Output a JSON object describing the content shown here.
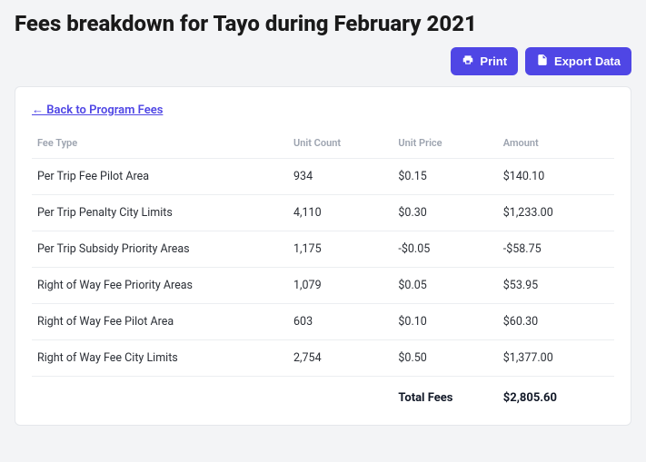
{
  "title": "Fees breakdown for Tayo during February 2021",
  "buttons": {
    "print": "Print",
    "export": "Export Data"
  },
  "backlink": "← Back to Program Fees",
  "table": {
    "headers": {
      "fee_type": "Fee Type",
      "unit_count": "Unit Count",
      "unit_price": "Unit Price",
      "amount": "Amount"
    },
    "rows": [
      {
        "fee_type": "Per Trip Fee Pilot Area",
        "unit_count": "934",
        "unit_price": "$0.15",
        "amount": "$140.10"
      },
      {
        "fee_type": "Per Trip Penalty City Limits",
        "unit_count": "4,110",
        "unit_price": "$0.30",
        "amount": "$1,233.00"
      },
      {
        "fee_type": "Per Trip Subsidy Priority Areas",
        "unit_count": "1,175",
        "unit_price": "-$0.05",
        "amount": "-$58.75"
      },
      {
        "fee_type": "Right of Way Fee Priority Areas",
        "unit_count": "1,079",
        "unit_price": "$0.05",
        "amount": "$53.95"
      },
      {
        "fee_type": "Right of Way Fee Pilot Area",
        "unit_count": "603",
        "unit_price": "$0.10",
        "amount": "$60.30"
      },
      {
        "fee_type": "Right of Way Fee City Limits",
        "unit_count": "2,754",
        "unit_price": "$0.50",
        "amount": "$1,377.00"
      }
    ],
    "total_label": "Total Fees",
    "total_value": "$2,805.60"
  },
  "colors": {
    "accent": "#4f46e5",
    "page_bg": "#f3f4f6",
    "card_bg": "#ffffff",
    "border": "#e5e7eb",
    "row_border": "#eceef1",
    "header_text": "#9ca3af",
    "body_text": "#2b2f36"
  }
}
